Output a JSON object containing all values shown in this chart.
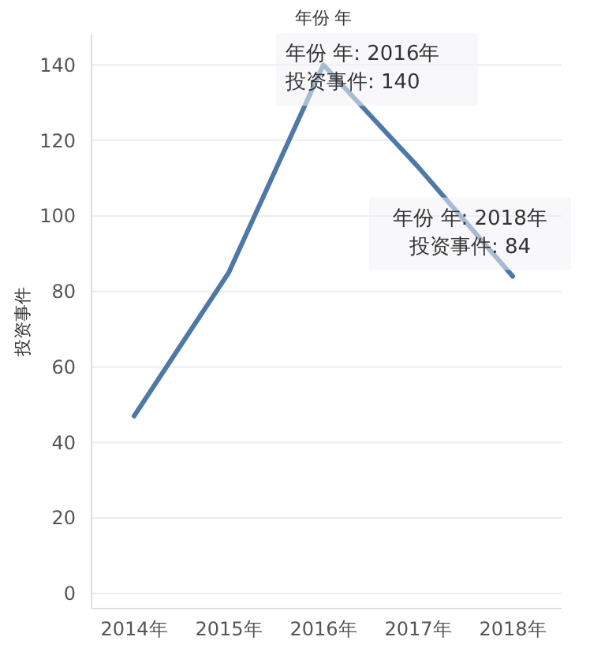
{
  "chart_data": {
    "type": "line",
    "title": "年份 年",
    "ylabel": "投资事件",
    "categories": [
      "2014年",
      "2015年",
      "2016年",
      "2017年",
      "2018年"
    ],
    "series": [
      {
        "color": "#4e79a7",
        "values": [
          47,
          85,
          140,
          113,
          84
        ]
      }
    ],
    "ylim": [
      -4,
      148
    ],
    "yticks": [
      0,
      20,
      40,
      60,
      80,
      100,
      120,
      140
    ],
    "grid": "y",
    "marker": "none",
    "line_style": "solid",
    "annotations": [
      {
        "text": "年份 年: 2016年",
        "x": "2016年",
        "y": 140
      },
      {
        "text": "投资事件: 140",
        "x": "2016年",
        "y": 140
      },
      {
        "text": "年份 年: 2018年",
        "x": "2018年",
        "y": 84
      },
      {
        "text": "投资事件: 84",
        "x": "2018年",
        "y": 84
      }
    ]
  }
}
